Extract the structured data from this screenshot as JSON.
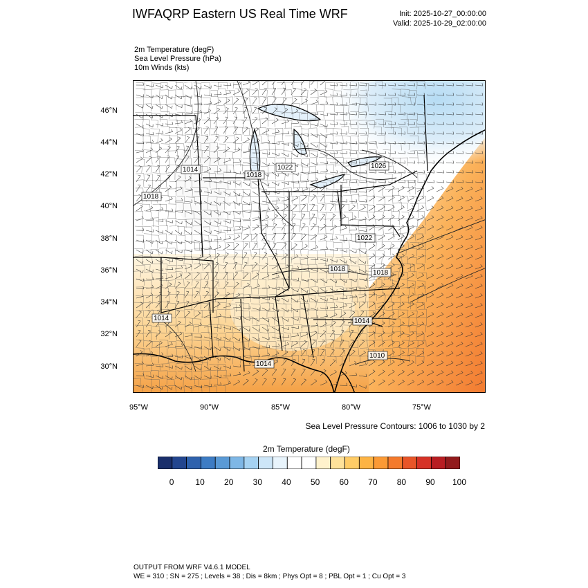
{
  "title": "IWFAQRP Eastern US Real Time WRF",
  "init": "Init: 2025-10-27_00:00:00",
  "valid": "Valid: 2025-10-29_02:00:00",
  "fields": [
    "2m Temperature   (degF)",
    "Sea Level Pressure   (hPa)",
    "10m Winds   (kts)"
  ],
  "lat_labels": [
    "46°N",
    "44°N",
    "42°N",
    "40°N",
    "38°N",
    "36°N",
    "34°N",
    "32°N",
    "30°N"
  ],
  "lon_labels": [
    "95°W",
    "90°W",
    "85°W",
    "80°W",
    "75°W"
  ],
  "isobar_labels": [
    "1014",
    "1018",
    "1022",
    "1026",
    "1018",
    "1018",
    "1022",
    "1018",
    "1014",
    "1014",
    "1014",
    "1010"
  ],
  "contours_note": "Sea Level Pressure Contours: 1006 to 1030 by 2",
  "colorbar": {
    "title": "2m Temperature  (degF)",
    "labels": [
      "0",
      "10",
      "20",
      "30",
      "40",
      "50",
      "60",
      "70",
      "80",
      "90",
      "100"
    ],
    "colors": [
      "#1a2f6b",
      "#23468f",
      "#2f62ad",
      "#3d7cc4",
      "#5a9ad6",
      "#7eb7e6",
      "#a5d2f2",
      "#cde6f8",
      "#e8f4fc",
      "#ffffff",
      "#ffffff",
      "#fff2cc",
      "#ffe29a",
      "#ffcc66",
      "#fdb444",
      "#fb9a35",
      "#f47a2c",
      "#e85528",
      "#d63226",
      "#b81d22",
      "#921a1c"
    ]
  },
  "footer": {
    "line1": "OUTPUT FROM WRF V4.6.1 MODEL",
    "line2": "WE = 310 ; SN = 275 ; Levels = 38 ; Dis = 8km ; Phys Opt = 8 ; PBL Opt = 1 ; Cu Opt = 3"
  }
}
